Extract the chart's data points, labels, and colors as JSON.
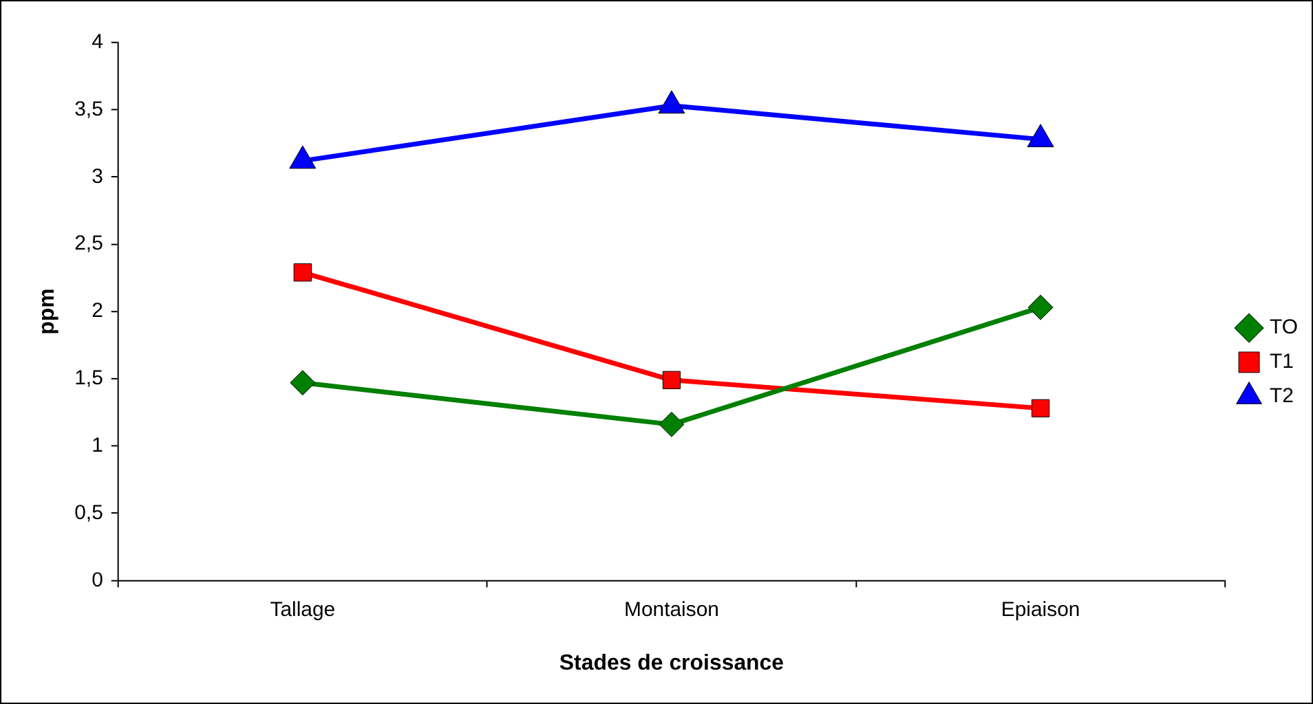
{
  "chart_data": {
    "type": "line",
    "xlabel": "Stades de croissance",
    "ylabel": "ppm",
    "categories": [
      "Tallage",
      "Montaison",
      "Epiaison"
    ],
    "series": [
      {
        "name": "TO",
        "color": "#008000",
        "values": [
          1.47,
          1.16,
          2.03
        ],
        "marker": "diamond"
      },
      {
        "name": "T1",
        "color": "#ff0000",
        "values": [
          2.29,
          1.49,
          1.28
        ],
        "marker": "square"
      },
      {
        "name": "T2",
        "color": "#0000ff",
        "values": [
          3.12,
          3.53,
          3.28
        ],
        "marker": "triangle"
      }
    ],
    "ylim": [
      0,
      4
    ],
    "yticks": [
      0,
      {
        "value": 0.5,
        "label": "0,5"
      },
      1,
      {
        "value": 1.5,
        "label": "1,5"
      },
      2,
      {
        "value": 2.5,
        "label": "2,5"
      },
      3,
      {
        "value": 3.5,
        "label": "3,5"
      },
      4
    ],
    "grid": false,
    "legend": "right",
    "line_style": "solid"
  }
}
